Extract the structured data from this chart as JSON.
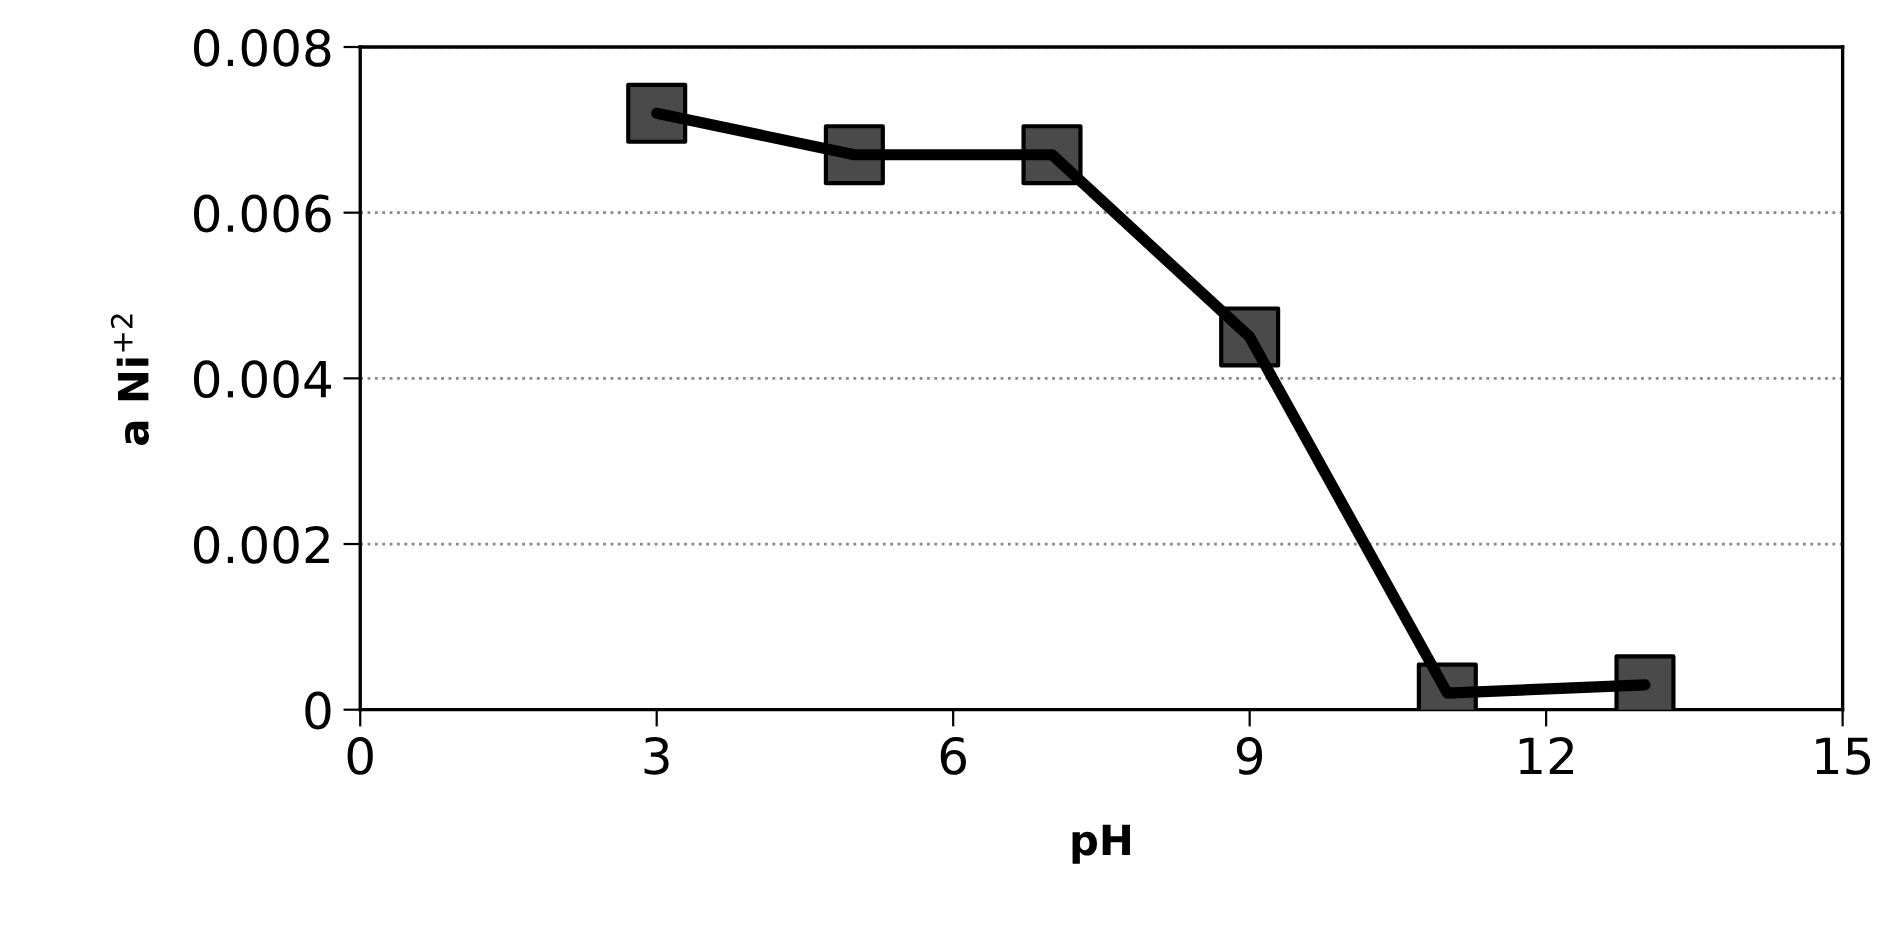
{
  "chart_data": {
    "type": "line",
    "xlabel": "pH",
    "ylabel": "a Ni$^{+2}$",
    "x": [
      3,
      5,
      7,
      9,
      11,
      13
    ],
    "series": [
      {
        "color": "#000000",
        "values": [
          0.0072,
          0.0067,
          0.0067,
          0.0045,
          0.0002,
          0.0003
        ]
      }
    ],
    "xlim": [
      0,
      15
    ],
    "xticks": [
      0,
      3,
      6,
      9,
      12,
      15
    ],
    "ylim": [
      0,
      0.008
    ],
    "yticks": [
      0,
      0.002,
      0.004,
      0.006,
      0.008
    ],
    "grid": "y",
    "marker": "square",
    "line_style": "solid"
  }
}
